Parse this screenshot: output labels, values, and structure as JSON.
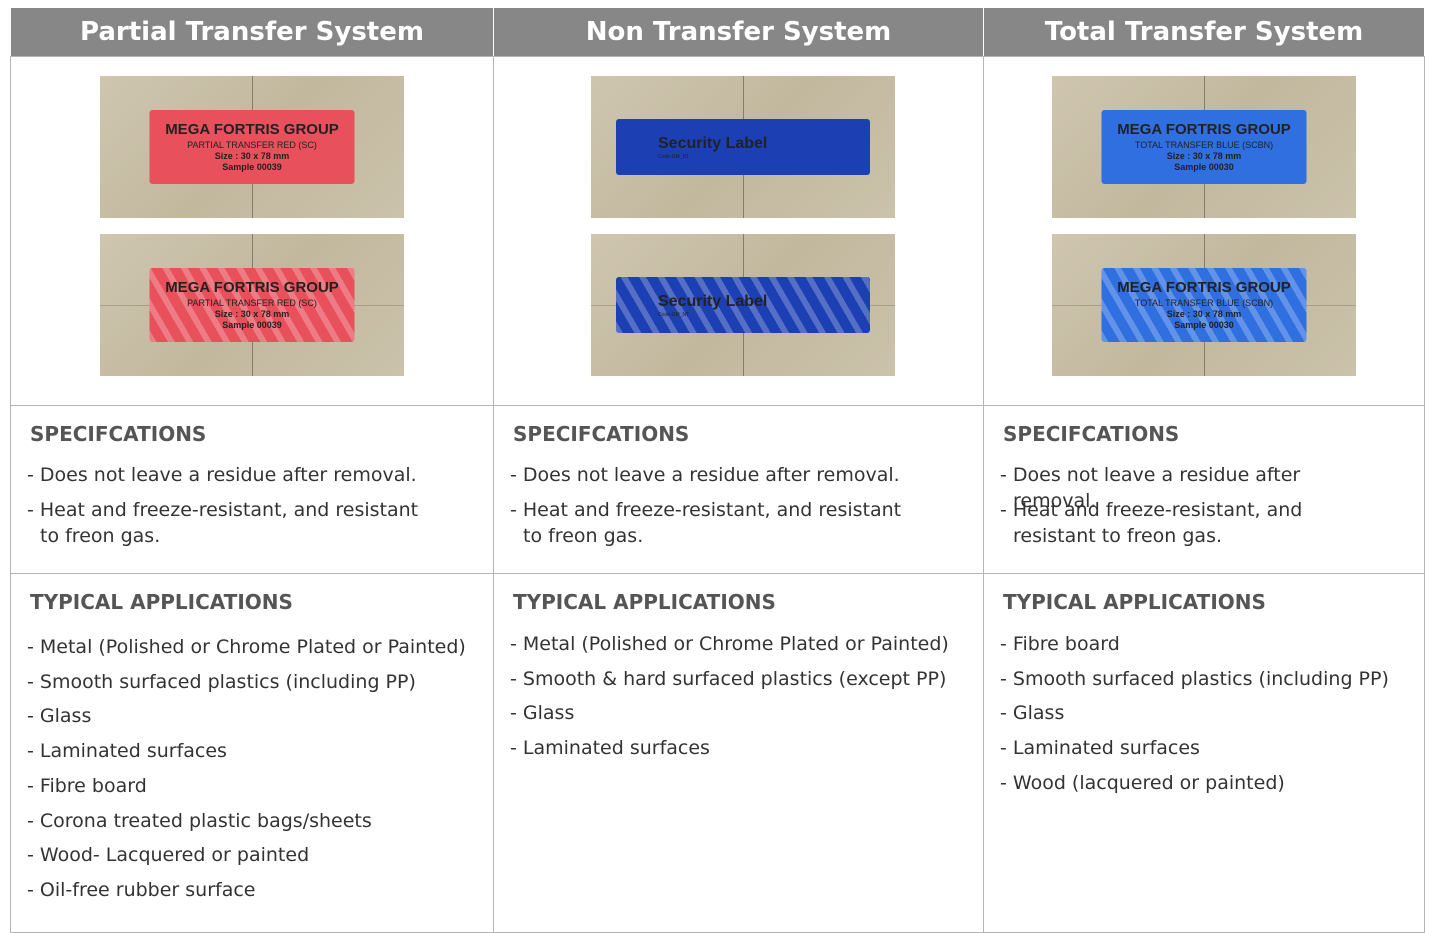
{
  "columns": [
    {
      "title": "Partial Transfer System",
      "color": "#e8505b",
      "images": [
        {
          "lines": [
            "MEGA FORTRIS GROUP",
            "PARTIAL TRANSFER RED (SC)",
            "Size : 30 x 78 mm",
            "Sample 00039"
          ]
        },
        {
          "lines": [
            "MEGA FORTRIS GROUP",
            "PARTIAL TRANSFER RED (SC)",
            "Size : 30 x 78 mm",
            "Sample 00039"
          ]
        }
      ],
      "specifications": {
        "heading": "SPECIFCATIONS",
        "items": [
          "- Does not leave a residue after removal.",
          "- Heat and freeze-resistant, and resistant to freon gas."
        ]
      },
      "applications": {
        "heading": "TYPICAL APPLICATIONS",
        "items": [
          "- Metal (Polished or Chrome Plated or Painted)",
          "- Smooth surfaced plastics (including PP)",
          "- Glass",
          "- Laminated surfaces",
          "- Fibre board",
          "- Corona treated plastic bags/sheets",
          "- Wood- Lacquered or painted",
          "- Oil-free rubber surface"
        ]
      }
    },
    {
      "title": "Non Transfer System",
      "color": "#1c3fb4",
      "images": [
        {
          "lines": [
            "Security Label",
            "Code-GM_NT"
          ]
        },
        {
          "lines": [
            "Security Label",
            "Code-GM_NT"
          ]
        }
      ],
      "specifications": {
        "heading": "SPECIFCATIONS",
        "items": [
          "- Does not leave a residue after removal.",
          "- Heat and freeze-resistant, and resistant to freon gas."
        ]
      },
      "applications": {
        "heading": "TYPICAL APPLICATIONS",
        "items": [
          "- Metal (Polished or Chrome Plated or Painted)",
          "- Smooth & hard surfaced plastics (except PP)",
          "- Glass",
          "- Laminated surfaces"
        ]
      }
    },
    {
      "title": "Total Transfer System",
      "color": "#2f6fe0",
      "images": [
        {
          "lines": [
            "MEGA FORTRIS GROUP",
            "TOTAL TRANSFER BLUE (SCBN)",
            "Size : 30 x 78 mm",
            "Sample 00030"
          ]
        },
        {
          "lines": [
            "MEGA FORTRIS GROUP",
            "TOTAL TRANSFER BLUE (SCBN)",
            "Size : 30 x 78 mm",
            "Sample 00030"
          ]
        }
      ],
      "specifications": {
        "heading": "SPECIFCATIONS",
        "items": [
          "- Does not leave a residue after removal.",
          "- Heat and freeze-resistant, and resistant to freon gas."
        ]
      },
      "applications": {
        "heading": "TYPICAL APPLICATIONS",
        "items": [
          "- Fibre board",
          "- Smooth surfaced plastics (including PP)",
          "- Glass",
          "- Laminated surfaces",
          "- Wood (lacquered or painted)"
        ]
      }
    }
  ]
}
